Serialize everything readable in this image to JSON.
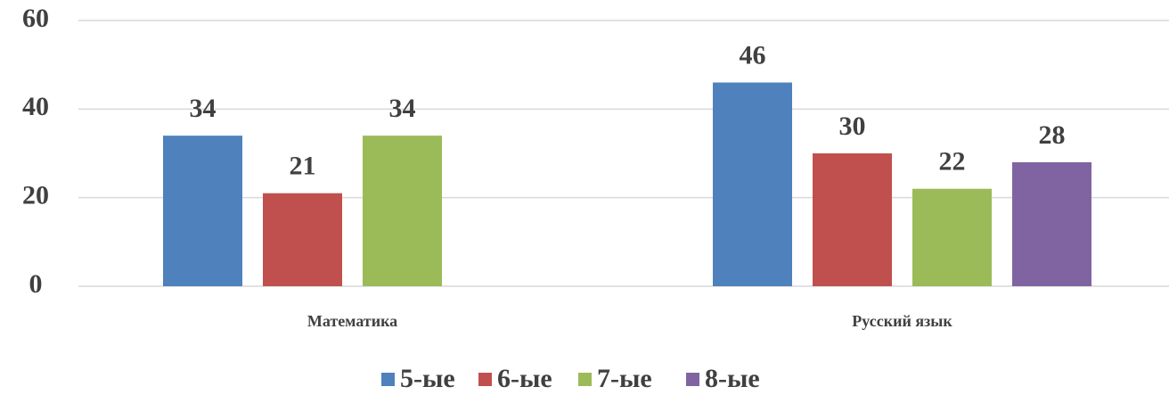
{
  "chart_data": {
    "type": "bar",
    "categories": [
      "Математика",
      "Русский язык"
    ],
    "series": [
      {
        "name": "5-ые",
        "color": "#4f81bd",
        "values": [
          34,
          46
        ]
      },
      {
        "name": "6-ые",
        "color": "#c0504d",
        "values": [
          21,
          30
        ]
      },
      {
        "name": "7-ые",
        "color": "#9bbb59",
        "values": [
          34,
          22
        ]
      },
      {
        "name": "8-ые",
        "color": "#8064a2",
        "values": [
          null,
          28
        ]
      }
    ],
    "ylim": [
      0,
      60
    ],
    "yticks": [
      0,
      20,
      40,
      60
    ],
    "grid": true,
    "legend": "bottom"
  }
}
